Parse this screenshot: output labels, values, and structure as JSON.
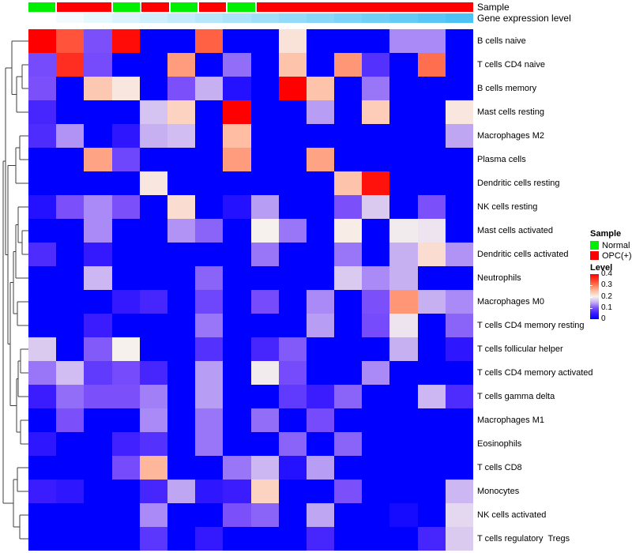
{
  "chart_data": {
    "type": "heatmap",
    "title": "",
    "columns": 16,
    "rows": [
      "B cells naive",
      "T cells CD4 naive",
      "B cells memory",
      "Mast cells resting",
      "Macrophages M2",
      "Plasma cells",
      "Dendritic cells resting",
      "NK cells resting",
      "Mast cells activated",
      "Dendritic cells activated",
      "Neutrophils",
      "Macrophages M0",
      "T cells CD4 memory resting",
      "T cells follicular helper",
      "T cells CD4 memory activated",
      "T cells gamma delta",
      "Macrophages M1",
      "Eosinophils",
      "T cells CD8",
      "Monocytes",
      "NK cells activated",
      "T cells regulatory  Tregs"
    ],
    "value_range": [
      0,
      0.4
    ],
    "values": [
      [
        0.4,
        0.33,
        0.1,
        0.39,
        0.0,
        0.0,
        0.32,
        0.0,
        0.0,
        0.215,
        0.0,
        0.0,
        0.0,
        0.13,
        0.13,
        0.0
      ],
      [
        0.095,
        0.36,
        0.095,
        0.0,
        0.0,
        0.275,
        0.0,
        0.115,
        0.0,
        0.245,
        0.0,
        0.28,
        0.07,
        0.0,
        0.31,
        0.0
      ],
      [
        0.1,
        0.0,
        0.24,
        0.21,
        0.0,
        0.1,
        0.15,
        0.03,
        0.0,
        0.4,
        0.245,
        0.0,
        0.12,
        0.0,
        0.0,
        0.0
      ],
      [
        0.06,
        0.0,
        0.0,
        0.0,
        0.165,
        0.23,
        0.0,
        0.4,
        0.0,
        0.0,
        0.14,
        0.0,
        0.235,
        0.0,
        0.0,
        0.21
      ],
      [
        0.065,
        0.135,
        0.0,
        0.04,
        0.15,
        0.16,
        0.0,
        0.25,
        0.0,
        0.0,
        0.0,
        0.0,
        0.0,
        0.0,
        0.0,
        0.145
      ],
      [
        0.0,
        0.0,
        0.27,
        0.09,
        0.0,
        0.0,
        0.0,
        0.275,
        0.0,
        0.0,
        0.27,
        0.0,
        0.0,
        0.0,
        0.0,
        0.0
      ],
      [
        0.0,
        0.0,
        0.0,
        0.0,
        0.21,
        0.0,
        0.0,
        0.0,
        0.0,
        0.0,
        0.0,
        0.245,
        0.385,
        0.0,
        0.0,
        0.0
      ],
      [
        0.03,
        0.1,
        0.13,
        0.1,
        0.0,
        0.22,
        0.0,
        0.03,
        0.14,
        0.0,
        0.0,
        0.1,
        0.17,
        0.0,
        0.1,
        0.0
      ],
      [
        0.0,
        0.0,
        0.13,
        0.0,
        0.0,
        0.135,
        0.11,
        0.0,
        0.2,
        0.12,
        0.0,
        0.205,
        0.0,
        0.195,
        0.19,
        0.0
      ],
      [
        0.065,
        0.0,
        0.045,
        0.0,
        0.0,
        0.0,
        0.0,
        0.0,
        0.12,
        0.0,
        0.0,
        0.12,
        0.0,
        0.15,
        0.22,
        0.135
      ],
      [
        0.0,
        0.0,
        0.155,
        0.0,
        0.0,
        0.0,
        0.11,
        0.0,
        0.0,
        0.0,
        0.0,
        0.17,
        0.13,
        0.15,
        0.0,
        0.0
      ],
      [
        0.0,
        0.0,
        0.0,
        0.045,
        0.06,
        0.0,
        0.09,
        0.0,
        0.095,
        0.0,
        0.13,
        0.0,
        0.1,
        0.28,
        0.15,
        0.13
      ],
      [
        0.0,
        0.0,
        0.05,
        0.0,
        0.0,
        0.0,
        0.12,
        0.0,
        0.0,
        0.0,
        0.14,
        0.0,
        0.095,
        0.19,
        0.0,
        0.11
      ],
      [
        0.17,
        0.0,
        0.105,
        0.2,
        0.0,
        0.0,
        0.07,
        0.0,
        0.06,
        0.105,
        0.0,
        0.0,
        0.0,
        0.15,
        0.0,
        0.04
      ],
      [
        0.12,
        0.16,
        0.08,
        0.095,
        0.06,
        0.0,
        0.14,
        0.0,
        0.195,
        0.095,
        0.0,
        0.0,
        0.13,
        0.0,
        0.0,
        0.0
      ],
      [
        0.05,
        0.115,
        0.1,
        0.1,
        0.125,
        0.0,
        0.14,
        0.0,
        0.0,
        0.08,
        0.05,
        0.11,
        0.0,
        0.0,
        0.155,
        0.065
      ],
      [
        0.0,
        0.1,
        0.0,
        0.0,
        0.13,
        0.0,
        0.12,
        0.0,
        0.115,
        0.0,
        0.095,
        0.0,
        0.0,
        0.0,
        0.0,
        0.0
      ],
      [
        0.04,
        0.0,
        0.0,
        0.055,
        0.07,
        0.0,
        0.12,
        0.0,
        0.0,
        0.11,
        0.0,
        0.11,
        0.0,
        0.0,
        0.0,
        0.0
      ],
      [
        0.0,
        0.0,
        0.0,
        0.095,
        0.255,
        0.0,
        0.0,
        0.12,
        0.155,
        0.03,
        0.14,
        0.0,
        0.0,
        0.0,
        0.0,
        0.0
      ],
      [
        0.05,
        0.04,
        0.0,
        0.0,
        0.06,
        0.145,
        0.04,
        0.05,
        0.23,
        0.0,
        0.0,
        0.1,
        0.0,
        0.0,
        0.0,
        0.155
      ],
      [
        0.0,
        0.0,
        0.0,
        0.0,
        0.13,
        0.0,
        0.0,
        0.1,
        0.11,
        0.0,
        0.145,
        0.0,
        0.0,
        0.02,
        0.0,
        0.18
      ],
      [
        0.0,
        0.0,
        0.0,
        0.0,
        0.075,
        0.0,
        0.045,
        0.0,
        0.0,
        0.0,
        0.06,
        0.0,
        0.0,
        0.0,
        0.06,
        0.17
      ]
    ],
    "colormap_stops": [
      [
        0.0,
        "#0000FF"
      ],
      [
        0.05,
        "#3A1CFF"
      ],
      [
        0.1,
        "#7B50FB"
      ],
      [
        0.15,
        "#C7B0F2"
      ],
      [
        0.2,
        "#F7F1EE"
      ],
      [
        0.25,
        "#FFBEA3"
      ],
      [
        0.3,
        "#FF7B58"
      ],
      [
        0.35,
        "#FF3A28"
      ],
      [
        0.4,
        "#FF0000"
      ]
    ],
    "col_annotations": {
      "sample": {
        "label": "Sample",
        "values": [
          "Normal",
          "OPC(+)",
          "OPC(+)",
          "Normal",
          "OPC(+)",
          "Normal",
          "OPC(+)",
          "Normal",
          "OPC(+)",
          "OPC(+)",
          "OPC(+)",
          "OPC(+)",
          "OPC(+)",
          "OPC(+)",
          "OPC(+)",
          "OPC(+)"
        ],
        "colors": {
          "Normal": "#00EE00",
          "OPC(+)": "#FF0000"
        }
      },
      "expression": {
        "label": "Gene expression level",
        "gradient_from": "#FFFFFF",
        "gradient_to": "#4CC2F5"
      }
    },
    "row_dendrogram": {
      "d": 4,
      "c": [
        {
          "d": 7,
          "c": [
            {
              "d": 15,
              "c": [
                1,
                {
                  "d": 21,
                  "c": [
                    {
                      "d": 28,
                      "c": [
                        2,
                        3
                      ]
                    },
                    4
                  ]
                }
              ]
            },
            {
              "d": 10,
              "c": [
                {
                  "d": 20,
                  "c": [
                    {
                      "d": 25,
                      "c": [
                        5,
                        6
                      ]
                    },
                    7
                  ]
                },
                {
                  "d": 13,
                  "c": [
                    {
                      "d": 17,
                      "c": [
                        {
                          "d": 20,
                          "c": [
                            {
                              "d": 23,
                              "c": [
                                8,
                                {
                                  "d": 28,
                                  "c": [
                                    9,
                                    10
                                  ]
                                }
                              ]
                            },
                            11
                          ]
                        },
                        {
                          "d": 22,
                          "c": [
                            12,
                            13
                          ]
                        }
                      ]
                    },
                    {
                      "d": 21,
                      "c": [
                        {
                          "d": 23,
                          "c": [
                            {
                              "d": 26,
                              "c": [
                                14,
                                15
                              ]
                            },
                            16
                          ]
                        },
                        {
                          "d": 26,
                          "c": [
                            17,
                            18
                          ]
                        }
                      ]
                    }
                  ]
                }
              ]
            }
          ]
        },
        {
          "d": 17,
          "c": [
            {
              "d": 22,
              "c": [
                19,
                20
              ]
            },
            {
              "d": 25,
              "c": [
                21,
                22
              ]
            }
          ]
        }
      ]
    },
    "legend": {
      "sample_title": "Sample",
      "sample_items": [
        {
          "label": "Normal",
          "color": "#00EE00"
        },
        {
          "label": "OPC(+)",
          "color": "#FF0000"
        }
      ],
      "level_title": "Level",
      "level_ticks": [
        "0.4",
        "0.3",
        "0.2",
        "0.1",
        "0"
      ]
    }
  }
}
